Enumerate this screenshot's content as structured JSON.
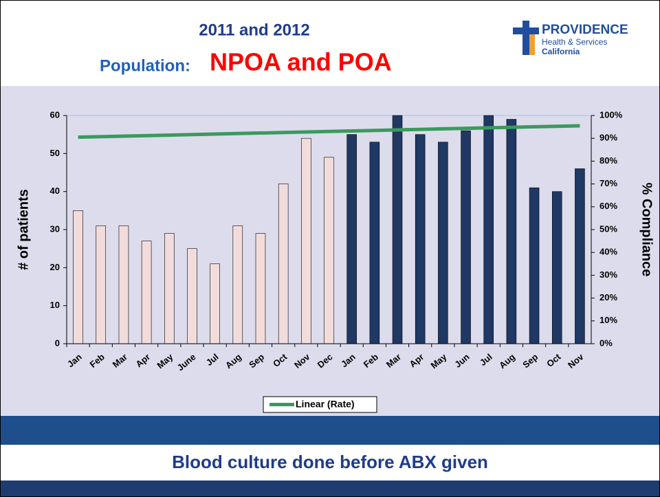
{
  "header": {
    "title": "2011 and 2012",
    "subtitle_label": "Population:",
    "subtitle_value": "NPOA and POA"
  },
  "logo": {
    "name": "PROVIDENCE",
    "line1": "Health & Services",
    "line2": "California"
  },
  "chart_data": {
    "type": "bar",
    "categories": [
      "Jan",
      "Feb",
      "Mar",
      "Apr",
      "May",
      "June",
      "Jul",
      "Aug",
      "Sep",
      "Oct",
      "Nov",
      "Dec",
      "Jan",
      "Feb",
      "Mar",
      "Apr",
      "May",
      "Jun",
      "Jul",
      "Aug",
      "Sep",
      "Oct",
      "Nov"
    ],
    "series": [
      {
        "color": "#f2dcdb",
        "values": [
          35,
          31,
          31,
          27,
          29,
          25,
          21,
          31,
          29,
          42,
          54,
          49,
          null,
          null,
          null,
          null,
          null,
          null,
          null,
          null,
          null,
          null,
          null
        ]
      },
      {
        "color": "#1f3864",
        "values": [
          null,
          null,
          null,
          null,
          null,
          null,
          null,
          null,
          null,
          null,
          null,
          null,
          55,
          53,
          60,
          55,
          53,
          56,
          60,
          59,
          41,
          40,
          46
        ]
      }
    ],
    "trendline": {
      "name": "Linear (Rate)",
      "color": "#3a9a5e",
      "axis": "y2",
      "values": [
        90.5,
        95.5
      ]
    },
    "ylabel": "# of patients",
    "y2label": "% Compliance",
    "ylim": [
      0,
      60
    ],
    "yticks": [
      0,
      10,
      20,
      30,
      40,
      50,
      60
    ],
    "y2lim": [
      0,
      100
    ],
    "y2ticks": [
      {
        "value": 0,
        "label": "0%"
      },
      {
        "value": 10,
        "label": "10%"
      },
      {
        "value": 20,
        "label": "20%"
      },
      {
        "value": 30,
        "label": "30%"
      },
      {
        "value": 40,
        "label": "40%"
      },
      {
        "value": 50,
        "label": "50%"
      },
      {
        "value": 60,
        "label": "60%"
      },
      {
        "value": 70,
        "label": "70%"
      },
      {
        "value": 80,
        "label": "80%"
      },
      {
        "value": 90,
        "label": "90%"
      },
      {
        "value": 100,
        "label": "100%"
      }
    ],
    "legend": "bottom"
  },
  "footer": {
    "text": "Blood culture done before ABX given"
  }
}
